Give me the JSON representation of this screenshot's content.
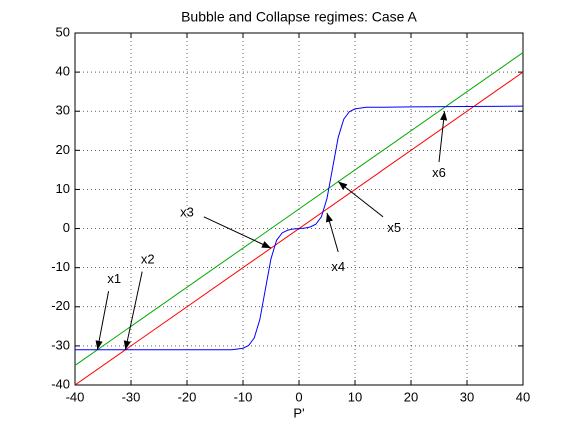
{
  "chart_data": {
    "type": "line",
    "title": "Bubble and Collapse regimes: Case A",
    "x_label": "P'",
    "xlim": [
      -40,
      40
    ],
    "ylim": [
      -40,
      50
    ],
    "xticks": [
      -40,
      -30,
      -20,
      -10,
      0,
      10,
      20,
      30,
      40
    ],
    "yticks": [
      -40,
      -30,
      -20,
      -10,
      0,
      10,
      20,
      30,
      40,
      50
    ],
    "grid": true,
    "series": [
      {
        "color": "#ff0000",
        "x": [
          -40,
          40
        ],
        "y": [
          -40,
          40
        ]
      },
      {
        "color": "#00aa00",
        "x": [
          -40,
          40
        ],
        "y": [
          -35,
          45
        ]
      },
      {
        "color": "#0000ff",
        "x": [
          -40,
          -30,
          -20,
          -15,
          -12,
          -10,
          -9,
          -8,
          -7,
          -6,
          -5,
          -4,
          -3,
          -2,
          -1,
          0,
          1,
          2,
          3,
          4,
          5,
          6,
          7,
          8,
          9,
          10,
          12,
          15,
          20,
          30,
          40
        ],
        "y": [
          -31,
          -31,
          -31,
          -31,
          -31,
          -30.6,
          -29.9,
          -28,
          -23.3,
          -15.5,
          -7.7,
          -3,
          -1.1,
          -0.4,
          -0.1,
          0,
          0.1,
          0.4,
          1.1,
          3,
          7.7,
          15.5,
          23.3,
          28,
          29.9,
          30.6,
          31,
          31,
          31.1,
          31.2,
          31.3
        ]
      }
    ],
    "annotations": [
      {
        "text": "x1",
        "x": -33,
        "y": -13,
        "tail": [
          -34,
          -16
        ],
        "head": [
          -36,
          -31
        ]
      },
      {
        "text": "x2",
        "x": -27,
        "y": -8,
        "tail": [
          -28,
          -11
        ],
        "head": [
          -31,
          -31
        ]
      },
      {
        "text": "x3",
        "x": -20,
        "y": 4,
        "tail": [
          -17,
          3
        ],
        "head": [
          -5,
          -5
        ]
      },
      {
        "text": "x4",
        "x": 7,
        "y": -10,
        "tail": [
          7,
          -6
        ],
        "head": [
          5,
          4
        ]
      },
      {
        "text": "x5",
        "x": 17,
        "y": 0,
        "tail": [
          15,
          3
        ],
        "head": [
          7,
          12
        ]
      },
      {
        "text": "x6",
        "x": 25,
        "y": 14,
        "tail": [
          25,
          17
        ],
        "head": [
          26,
          30
        ]
      }
    ]
  }
}
